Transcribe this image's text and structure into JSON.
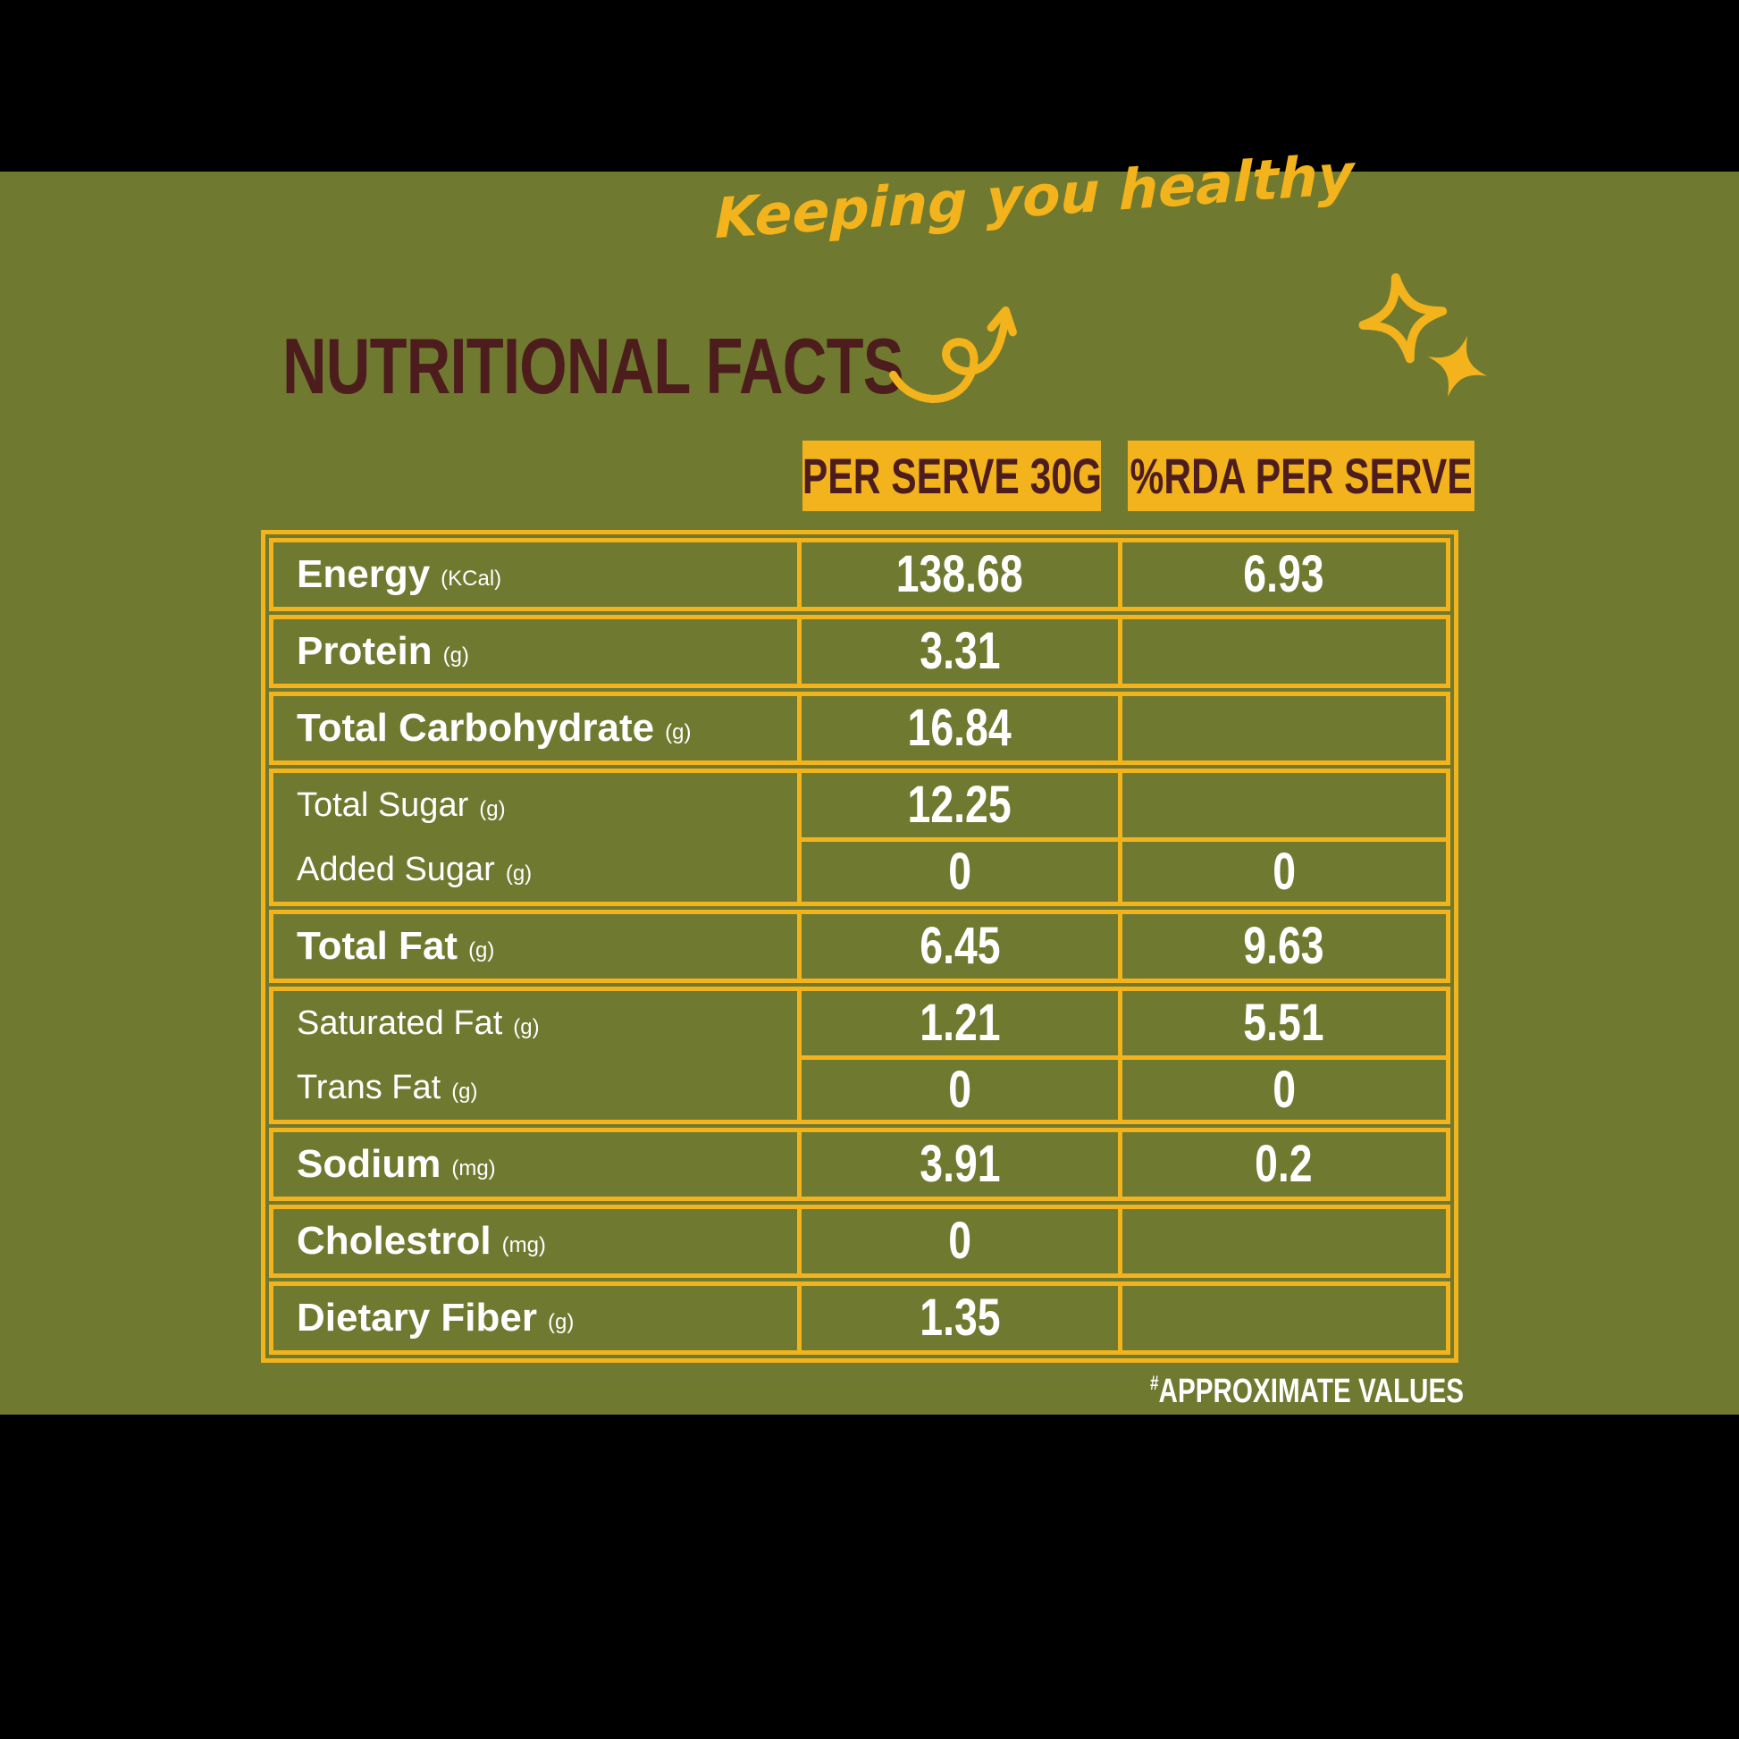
{
  "page": {
    "tagline": "Keeping you healthy",
    "title": "NUTRITIONAL FACTS",
    "footnote_marker": "#",
    "footnote": "APPROXIMATE VALUES"
  },
  "colors": {
    "background": "#000000",
    "panel_green": "#6F7930",
    "accent_yellow": "#F2B31C",
    "title_maroon": "#4C1D1C",
    "text_white": "#FFFFFF"
  },
  "icons": [
    "curved-arrow-doodle-icon",
    "sparkle-outline-icon",
    "sparkle-filled-icon"
  ],
  "table": {
    "column_headers": [
      "PER SERVE 30G",
      "%RDA PER SERVE"
    ],
    "blocks": [
      {
        "rows": [
          {
            "label": "Energy",
            "unit": "(KCal)",
            "emphasis": true,
            "per_serve": "138.68",
            "rda": "6.93"
          }
        ]
      },
      {
        "rows": [
          {
            "label": "Protein",
            "unit": "(g)",
            "emphasis": true,
            "per_serve": "3.31",
            "rda": ""
          }
        ]
      },
      {
        "rows": [
          {
            "label": "Total Carbohydrate",
            "unit": "(g)",
            "emphasis": true,
            "per_serve": "16.84",
            "rda": ""
          }
        ]
      },
      {
        "rows": [
          {
            "label": "Total Sugar",
            "unit": "(g)",
            "emphasis": false,
            "per_serve": "12.25",
            "rda": ""
          },
          {
            "label": "Added Sugar",
            "unit": "(g)",
            "emphasis": false,
            "per_serve": "0",
            "rda": "0"
          }
        ]
      },
      {
        "rows": [
          {
            "label": "Total Fat",
            "unit": "(g)",
            "emphasis": true,
            "per_serve": "6.45",
            "rda": "9.63"
          }
        ]
      },
      {
        "rows": [
          {
            "label": "Saturated Fat",
            "unit": "(g)",
            "emphasis": false,
            "per_serve": "1.21",
            "rda": "5.51"
          },
          {
            "label": "Trans Fat",
            "unit": "(g)",
            "emphasis": false,
            "per_serve": "0",
            "rda": "0"
          }
        ]
      },
      {
        "rows": [
          {
            "label": "Sodium",
            "unit": "(mg)",
            "emphasis": true,
            "per_serve": "3.91",
            "rda": "0.2"
          }
        ]
      },
      {
        "rows": [
          {
            "label": "Cholestrol",
            "unit": "(mg)",
            "emphasis": true,
            "per_serve": "0",
            "rda": ""
          }
        ]
      },
      {
        "rows": [
          {
            "label": "Dietary Fiber",
            "unit": "(g)",
            "emphasis": true,
            "per_serve": "1.35",
            "rda": ""
          }
        ]
      }
    ]
  }
}
